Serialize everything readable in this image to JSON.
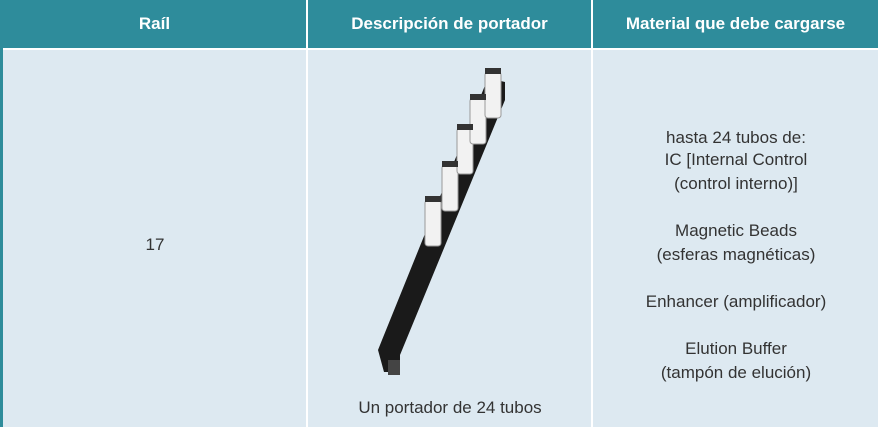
{
  "table": {
    "headers": [
      "Raíl",
      "Descripción de portador",
      "Material que debe cargarse"
    ],
    "rows": [
      {
        "rail": "17",
        "carrier_caption": "Un portador de 24 tubos",
        "material_intro": "hasta 24 tubos de:",
        "materials": [
          [
            "IC [Internal Control",
            "(control interno)]"
          ],
          [
            "Magnetic Beads",
            "(esferas magnéticas)"
          ],
          [
            "Enhancer (amplificador)"
          ],
          [
            "Elution Buffer",
            "(tampón de elución)"
          ]
        ]
      }
    ]
  }
}
